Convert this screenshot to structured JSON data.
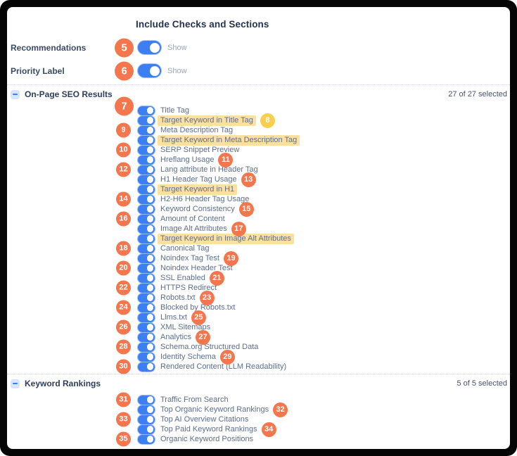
{
  "page": {
    "title": "Include Checks and Sections"
  },
  "colors": {
    "accent": "#3D7EF2",
    "badge_orange": "#F4764D",
    "badge_yellow": "#F8CF4D",
    "bar_gold": "#DCA70E",
    "highlight": "rgba(247,199,82,0.55)",
    "title_text": "#26334F",
    "section_text": "#2F3D5C",
    "label_strong": "#3A4966",
    "label_text": "#5C6E8E",
    "count_text": "#46536E",
    "muted_text": "#9DA7B7",
    "divider": "#CDD4DF"
  },
  "top_toggles": [
    {
      "badge": "5",
      "label": "Recommendations",
      "toggle_on": true,
      "state_label": "Show"
    },
    {
      "badge": "6",
      "label": "Priority Label",
      "toggle_on": true,
      "state_label": "Show"
    }
  ],
  "sections": [
    {
      "name": "On-Page SEO Results",
      "collapse_icon": "minus-icon",
      "selected_text": "27 of 27 selected",
      "progress_pct": 100,
      "items": [
        {
          "label": "Title Tag",
          "toggle_on": true,
          "highlighted": false,
          "badge": {
            "n": "7",
            "side": "left",
            "size": "lg",
            "color": "orange"
          }
        },
        {
          "label": "Target Keyword in Title Tag",
          "toggle_on": true,
          "highlighted": true,
          "badge": {
            "n": "8",
            "side": "right",
            "size": "sm",
            "color": "yellow"
          }
        },
        {
          "label": "Meta Description Tag",
          "toggle_on": true,
          "highlighted": false,
          "badge": {
            "n": "9",
            "side": "left",
            "size": "sm",
            "color": "orange"
          }
        },
        {
          "label": "Target Keyword in Meta Description Tag",
          "toggle_on": true,
          "highlighted": true,
          "badge": null
        },
        {
          "label": "SERP Snippet Preview",
          "toggle_on": true,
          "highlighted": false,
          "badge": {
            "n": "10",
            "side": "left",
            "size": "sm",
            "color": "orange"
          }
        },
        {
          "label": "Hreflang Usage",
          "toggle_on": true,
          "highlighted": false,
          "badge": {
            "n": "11",
            "side": "right",
            "size": "sm",
            "color": "orange"
          }
        },
        {
          "label": "Lang attribute in Header Tag",
          "toggle_on": true,
          "highlighted": false,
          "badge": {
            "n": "12",
            "side": "left",
            "size": "sm",
            "color": "orange"
          }
        },
        {
          "label": "H1 Header Tag Usage",
          "toggle_on": true,
          "highlighted": false,
          "badge": {
            "n": "13",
            "side": "right",
            "size": "sm",
            "color": "orange"
          }
        },
        {
          "label": "Target Keyword in H1",
          "toggle_on": true,
          "highlighted": true,
          "badge": null
        },
        {
          "label": "H2-H6 Header Tag Usage",
          "toggle_on": true,
          "highlighted": false,
          "badge": {
            "n": "14",
            "side": "left",
            "size": "sm",
            "color": "orange"
          }
        },
        {
          "label": "Keyword Consistency",
          "toggle_on": true,
          "highlighted": false,
          "badge": {
            "n": "15",
            "side": "right",
            "size": "sm",
            "color": "orange"
          }
        },
        {
          "label": "Amount of Content",
          "toggle_on": true,
          "highlighted": false,
          "badge": {
            "n": "16",
            "side": "left",
            "size": "sm",
            "color": "orange"
          }
        },
        {
          "label": "Image Alt Attributes",
          "toggle_on": true,
          "highlighted": false,
          "badge": {
            "n": "17",
            "side": "right",
            "size": "sm",
            "color": "orange"
          }
        },
        {
          "label": "Target Keyword in Image Alt Attributes",
          "toggle_on": true,
          "highlighted": true,
          "badge": null
        },
        {
          "label": "Canonical Tag",
          "toggle_on": true,
          "highlighted": false,
          "badge": {
            "n": "18",
            "side": "left",
            "size": "sm",
            "color": "orange"
          }
        },
        {
          "label": "Noindex Tag Test",
          "toggle_on": true,
          "highlighted": false,
          "badge": {
            "n": "19",
            "side": "right",
            "size": "sm",
            "color": "orange"
          }
        },
        {
          "label": "Noindex Header Test",
          "toggle_on": true,
          "highlighted": false,
          "badge": {
            "n": "20",
            "side": "left",
            "size": "sm",
            "color": "orange"
          }
        },
        {
          "label": "SSL Enabled",
          "toggle_on": true,
          "highlighted": false,
          "badge": {
            "n": "21",
            "side": "right",
            "size": "sm",
            "color": "orange"
          }
        },
        {
          "label": "HTTPS Redirect",
          "toggle_on": true,
          "highlighted": false,
          "badge": {
            "n": "22",
            "side": "left",
            "size": "sm",
            "color": "orange"
          }
        },
        {
          "label": "Robots.txt",
          "toggle_on": true,
          "highlighted": false,
          "badge": {
            "n": "23",
            "side": "right",
            "size": "sm",
            "color": "orange"
          }
        },
        {
          "label": "Blocked by Robots.txt",
          "toggle_on": true,
          "highlighted": false,
          "badge": {
            "n": "24",
            "side": "left",
            "size": "sm",
            "color": "orange"
          }
        },
        {
          "label": "Llms.txt",
          "toggle_on": true,
          "highlighted": false,
          "badge": {
            "n": "25",
            "side": "right",
            "size": "sm",
            "color": "orange"
          }
        },
        {
          "label": "XML Sitemaps",
          "toggle_on": true,
          "highlighted": false,
          "badge": {
            "n": "26",
            "side": "left",
            "size": "sm",
            "color": "orange"
          }
        },
        {
          "label": "Analytics",
          "toggle_on": true,
          "highlighted": false,
          "badge": {
            "n": "27",
            "side": "right",
            "size": "sm",
            "color": "orange"
          }
        },
        {
          "label": "Schema.org Structured Data",
          "toggle_on": true,
          "highlighted": false,
          "badge": {
            "n": "28",
            "side": "left",
            "size": "sm",
            "color": "orange"
          }
        },
        {
          "label": "Identity Schema",
          "toggle_on": true,
          "highlighted": false,
          "badge": {
            "n": "29",
            "side": "right",
            "size": "sm",
            "color": "orange"
          }
        },
        {
          "label": "Rendered Content (LLM Readability)",
          "toggle_on": true,
          "highlighted": false,
          "badge": {
            "n": "30",
            "side": "left",
            "size": "sm",
            "color": "orange"
          }
        }
      ]
    },
    {
      "name": "Keyword Rankings",
      "collapse_icon": "minus-icon",
      "selected_text": "5 of 5 selected",
      "progress_pct": 100,
      "items": [
        {
          "label": "Traffic From Search",
          "toggle_on": true,
          "highlighted": false,
          "badge": {
            "n": "31",
            "side": "left",
            "size": "sm",
            "color": "orange"
          }
        },
        {
          "label": "Top Organic Keyword Rankings",
          "toggle_on": true,
          "highlighted": false,
          "badge": {
            "n": "32",
            "side": "right",
            "size": "sm",
            "color": "orange"
          }
        },
        {
          "label": "Top AI Overview Citations",
          "toggle_on": true,
          "highlighted": false,
          "badge": {
            "n": "33",
            "side": "left",
            "size": "sm",
            "color": "orange"
          }
        },
        {
          "label": "Top Paid Keyword Rankings",
          "toggle_on": true,
          "highlighted": false,
          "badge": {
            "n": "34",
            "side": "right",
            "size": "sm",
            "color": "orange"
          }
        },
        {
          "label": "Organic Keyword Positions",
          "toggle_on": true,
          "highlighted": false,
          "badge": {
            "n": "35",
            "side": "left",
            "size": "sm",
            "color": "orange"
          }
        }
      ]
    }
  ]
}
